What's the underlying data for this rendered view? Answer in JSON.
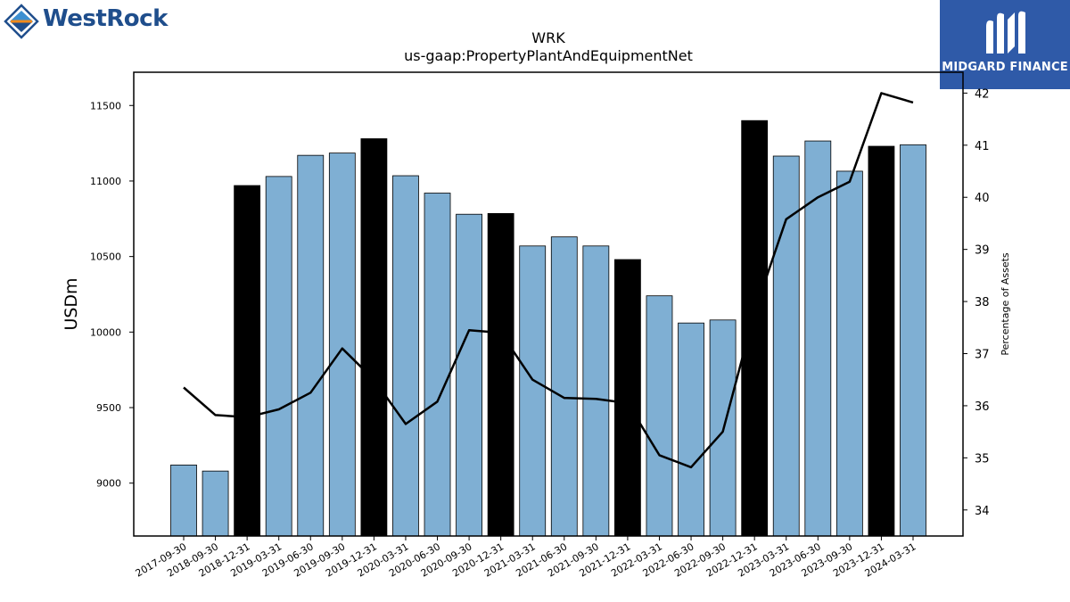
{
  "logos": {
    "left": {
      "wordmark": "WestRock",
      "icon": "westrock-diamond-icon"
    },
    "right": {
      "wordmark": "MIDGARD FINANCE",
      "icon": "midgard-m-icon"
    }
  },
  "colors": {
    "bar_regular": "#7fafd3",
    "bar_highlight": "#000000",
    "line": "#000000"
  },
  "chart_data": {
    "type": "bar",
    "title": "WRK",
    "subtitle": "us-gaap:PropertyPlantAndEquipmentNet",
    "ylabel": "USDm",
    "y2label": "Percentage of Assets",
    "ylim": [
      8650,
      11720
    ],
    "y2lim": [
      33.5,
      42.4
    ],
    "yticks": [
      9000,
      9500,
      10000,
      10500,
      11000,
      11500
    ],
    "y2ticks": [
      34,
      35,
      36,
      37,
      38,
      39,
      40,
      41,
      42
    ],
    "categories": [
      "2017-09-30",
      "2018-09-30",
      "2018-12-31",
      "2019-03-31",
      "2019-06-30",
      "2019-09-30",
      "2019-12-31",
      "2020-03-31",
      "2020-06-30",
      "2020-09-30",
      "2020-12-31",
      "2021-03-31",
      "2021-06-30",
      "2021-09-30",
      "2021-12-31",
      "2022-03-31",
      "2022-06-30",
      "2022-09-30",
      "2022-12-31",
      "2023-03-31",
      "2023-06-30",
      "2023-09-30",
      "2023-12-31",
      "2024-03-31"
    ],
    "series": [
      {
        "type": "bar",
        "axis": "left",
        "values": [
          9120,
          9080,
          10970,
          11030,
          11170,
          11185,
          11280,
          11035,
          10920,
          10780,
          10785,
          10570,
          10630,
          10570,
          10480,
          10240,
          10060,
          10080,
          11400,
          11165,
          11265,
          11065,
          11230,
          11240
        ],
        "highlight": [
          false,
          false,
          true,
          false,
          false,
          false,
          true,
          false,
          false,
          false,
          true,
          false,
          false,
          false,
          true,
          false,
          false,
          false,
          true,
          false,
          false,
          false,
          true,
          false
        ]
      },
      {
        "type": "line",
        "axis": "right",
        "values": [
          36.35,
          35.82,
          35.78,
          35.93,
          36.25,
          37.1,
          36.5,
          35.65,
          36.08,
          37.45,
          37.4,
          36.5,
          36.15,
          36.13,
          36.05,
          35.05,
          34.82,
          35.5,
          37.8,
          39.58,
          40.0,
          40.3,
          42.0,
          41.82
        ]
      }
    ]
  }
}
